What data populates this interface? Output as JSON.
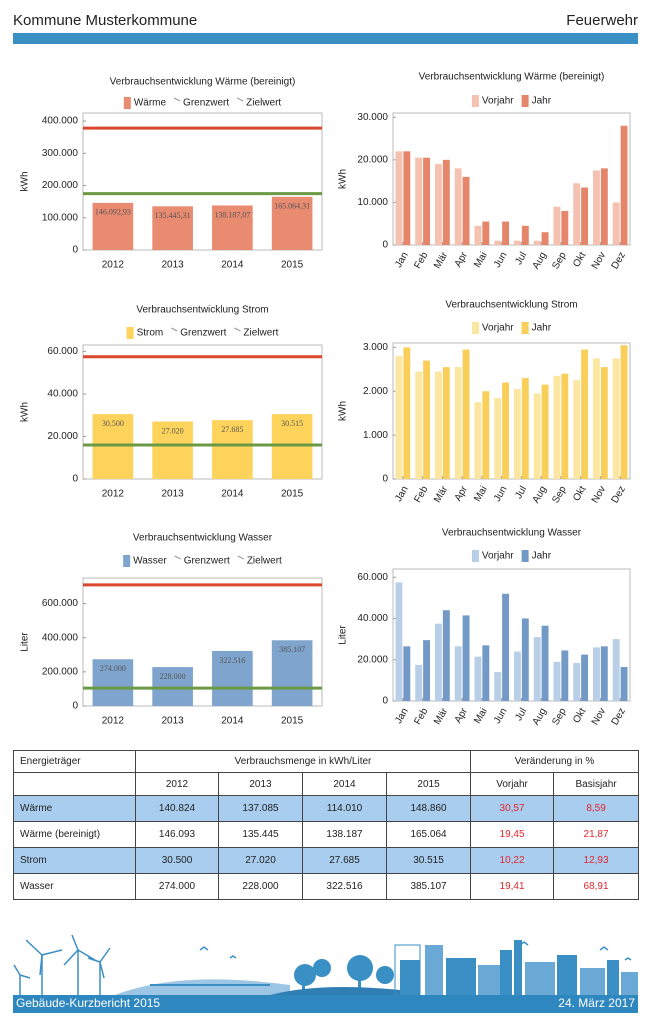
{
  "header": {
    "title": "Kommune Musterkommune",
    "department": "Feuerwehr"
  },
  "chart_data": [
    {
      "type": "bar",
      "title": "Verbrauchsentwicklung Wärme (bereinigt)",
      "ylabel": "kWh",
      "categories": [
        "2012",
        "2013",
        "2014",
        "2015"
      ],
      "series": [
        {
          "name": "Wärme",
          "color": "#e98b70",
          "values": [
            146092.93,
            135445.31,
            138187.07,
            165064.31
          ],
          "value_labels": [
            "146.092,93",
            "135.445,31",
            "138.187,07",
            "165.064,31"
          ]
        }
      ],
      "lines": [
        {
          "name": "Grenzwert",
          "color": "#d9472f",
          "value": 378000
        },
        {
          "name": "Zielwert",
          "color": "#6c9a44",
          "value": 175000
        }
      ],
      "ylim": [
        0,
        425000
      ],
      "yticks": [
        0,
        {
          "value": 100000,
          "label": "100.000"
        },
        {
          "value": 200000,
          "label": "200.000"
        },
        {
          "value": 300000,
          "label": "300.000"
        },
        {
          "value": 400000,
          "label": "400.000"
        }
      ]
    },
    {
      "type": "bar",
      "title": "Verbrauchsentwicklung Wärme (bereinigt)",
      "ylabel": "kWh",
      "categories": [
        "Jan",
        "Feb",
        "Mär",
        "Apr",
        "Mai",
        "Jun",
        "Jul",
        "Aug",
        "Sep",
        "Okt",
        "Nov",
        "Dez"
      ],
      "series": [
        {
          "name": "Vorjahr",
          "color": "#f5c1b1",
          "values": [
            22000,
            20500,
            19000,
            18000,
            4500,
            1000,
            1000,
            1000,
            9000,
            14500,
            17500,
            10000
          ]
        },
        {
          "name": "Jahr",
          "color": "#e5856a",
          "values": [
            22000,
            20500,
            20000,
            16000,
            5500,
            5500,
            4500,
            3000,
            8000,
            13500,
            18000,
            28000
          ]
        }
      ],
      "ylim": [
        0,
        31000
      ],
      "yticks": [
        0,
        {
          "value": 10000,
          "label": "10.000"
        },
        {
          "value": 20000,
          "label": "20.000"
        },
        {
          "value": 30000,
          "label": "30.000"
        }
      ]
    },
    {
      "type": "bar",
      "title": "Verbrauchsentwicklung Strom",
      "ylabel": "kWh",
      "categories": [
        "2012",
        "2013",
        "2014",
        "2015"
      ],
      "series": [
        {
          "name": "Strom",
          "color": "#fdd35c",
          "values": [
            30500,
            27020,
            27685,
            30515
          ],
          "value_labels": [
            "30.500",
            "27.020",
            "27.685",
            "30.515"
          ]
        }
      ],
      "lines": [
        {
          "name": "Grenzwert",
          "color": "#d9472f",
          "value": 57500
        },
        {
          "name": "Zielwert",
          "color": "#6c9a44",
          "value": 16000
        }
      ],
      "ylim": [
        0,
        63000
      ],
      "yticks": [
        0,
        {
          "value": 20000,
          "label": "20.000"
        },
        {
          "value": 40000,
          "label": "40.000"
        },
        {
          "value": 60000,
          "label": "60.000"
        }
      ]
    },
    {
      "type": "bar",
      "title": "Verbrauchsentwicklung Strom",
      "ylabel": "kWh",
      "categories": [
        "Jan",
        "Feb",
        "Mär",
        "Apr",
        "Mai",
        "Jun",
        "Jul",
        "Aug",
        "Sep",
        "Okt",
        "Nov",
        "Dez"
      ],
      "series": [
        {
          "name": "Vorjahr",
          "color": "#fbe6a2",
          "values": [
            2800,
            2450,
            2450,
            2550,
            1750,
            1850,
            2050,
            1950,
            2350,
            2250,
            2750,
            2750
          ]
        },
        {
          "name": "Jahr",
          "color": "#f9cf5a",
          "values": [
            3000,
            2700,
            2550,
            2950,
            2000,
            2200,
            2300,
            2150,
            2400,
            2950,
            2550,
            3050
          ]
        }
      ],
      "ylim": [
        0,
        3100
      ],
      "yticks": [
        0,
        {
          "value": 1000,
          "label": "1.000"
        },
        {
          "value": 2000,
          "label": "2.000"
        },
        {
          "value": 3000,
          "label": "3.000"
        }
      ]
    },
    {
      "type": "bar",
      "title": "Verbrauchsentwicklung Wasser",
      "ylabel": "Liter",
      "categories": [
        "2012",
        "2013",
        "2014",
        "2015"
      ],
      "series": [
        {
          "name": "Wasser",
          "color": "#7fa4cd",
          "values": [
            274000,
            228000,
            322516,
            385107
          ],
          "value_labels": [
            "274.000",
            "228.000",
            "322.516",
            "385.107"
          ]
        }
      ],
      "lines": [
        {
          "name": "Grenzwert",
          "color": "#d9472f",
          "value": 710000
        },
        {
          "name": "Zielwert",
          "color": "#6c9a44",
          "value": 105000
        }
      ],
      "ylim": [
        0,
        750000
      ],
      "yticks": [
        0,
        {
          "value": 200000,
          "label": "200.000"
        },
        {
          "value": 400000,
          "label": "400.000"
        },
        {
          "value": 600000,
          "label": "600.000"
        }
      ]
    },
    {
      "type": "bar",
      "title": "Verbrauchsentwicklung Wasser",
      "ylabel": "Liter",
      "categories": [
        "Jan",
        "Feb",
        "Mär",
        "Apr",
        "Mai",
        "Jun",
        "Jul",
        "Aug",
        "Sep",
        "Okt",
        "Nov",
        "Dez"
      ],
      "series": [
        {
          "name": "Vorjahr",
          "color": "#b9cee7",
          "values": [
            57500,
            17500,
            37500,
            26500,
            21500,
            14000,
            24000,
            31000,
            19000,
            18500,
            26000,
            30000
          ]
        },
        {
          "name": "Jahr",
          "color": "#7399c6",
          "values": [
            26500,
            29500,
            44000,
            41500,
            27000,
            52000,
            40000,
            36500,
            24500,
            22500,
            26500,
            16500
          ]
        }
      ],
      "ylim": [
        0,
        64000
      ],
      "yticks": [
        0,
        {
          "value": 20000,
          "label": "20.000"
        },
        {
          "value": 40000,
          "label": "40.000"
        },
        {
          "value": 60000,
          "label": "60.000"
        }
      ]
    }
  ],
  "table": {
    "header": [
      "Energieträger",
      "Verbrauchsmenge in kWh/Liter",
      "Veränderung in %"
    ],
    "subheader": [
      "2012",
      "2013",
      "2014",
      "2015",
      "Vorjahr",
      "Basisjahr"
    ],
    "rows": [
      [
        "Wärme",
        "140.824",
        "137.085",
        "114.010",
        "148.860",
        "30,57",
        "8,59"
      ],
      [
        "Wärme (bereinigt)",
        "146.093",
        "135.445",
        "138.187",
        "165.064",
        "19,45",
        "21,87"
      ],
      [
        "Strom",
        "30.500",
        "27.020",
        "27.685",
        "30.515",
        "10,22",
        "12,93"
      ],
      [
        "Wasser",
        "274.000",
        "228.000",
        "322.516",
        "385.107",
        "19,41",
        "68,91"
      ]
    ]
  },
  "footer": {
    "report": "Gebäude-Kurzbericht 2015",
    "date": "24. März 2017"
  }
}
